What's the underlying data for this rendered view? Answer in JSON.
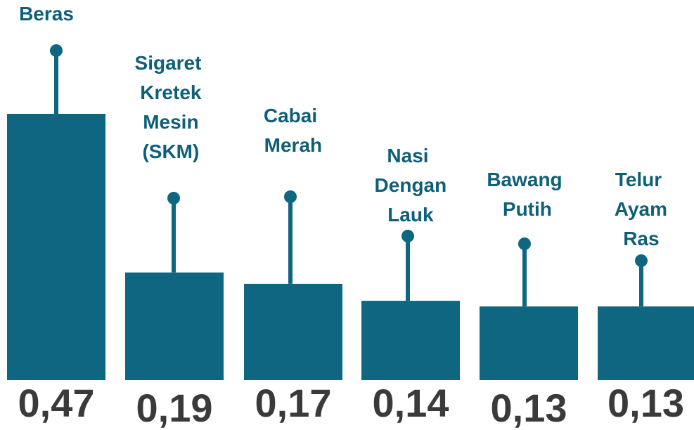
{
  "chart_data": {
    "type": "bar",
    "categories": [
      "Beras",
      "Sigaret Kretek Mesin (SKM)",
      "Cabai Merah",
      "Nasi Dengan Lauk",
      "Bawang Putih",
      "Telur Ayam Ras"
    ],
    "values": [
      0.47,
      0.19,
      0.17,
      0.14,
      0.13,
      0.13
    ],
    "value_labels": [
      "0,47",
      "0,19",
      "0,17",
      "0,14",
      "0,13",
      "0,13"
    ],
    "color": "#0e6680"
  }
}
